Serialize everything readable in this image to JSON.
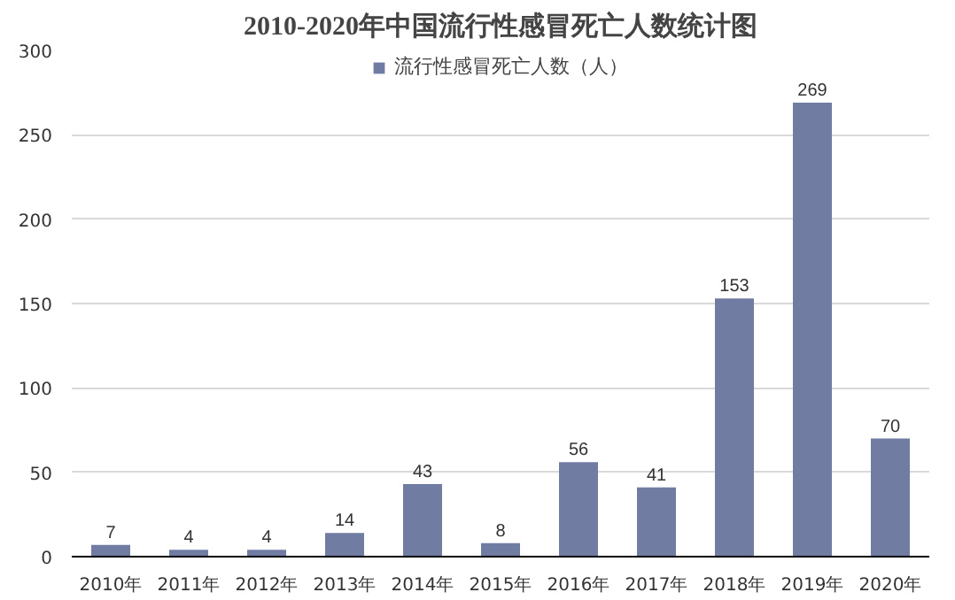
{
  "chart_data": {
    "type": "bar",
    "title": "2010-2020年中国流行性感冒死亡人数统计图",
    "categories": [
      "2010年",
      "2011年",
      "2012年",
      "2013年",
      "2014年",
      "2015年",
      "2016年",
      "2017年",
      "2018年",
      "2019年",
      "2020年"
    ],
    "series": [
      {
        "name": "流行性感冒死亡人数（人）",
        "color": "#717ca3",
        "values": [
          7,
          4,
          4,
          14,
          43,
          8,
          56,
          41,
          153,
          269,
          70
        ]
      }
    ],
    "ylim": [
      0,
      300
    ],
    "yticks": [
      0,
      50,
      100,
      150,
      200,
      250,
      300
    ],
    "grid": "y",
    "legend": "top",
    "data_labels": true
  }
}
